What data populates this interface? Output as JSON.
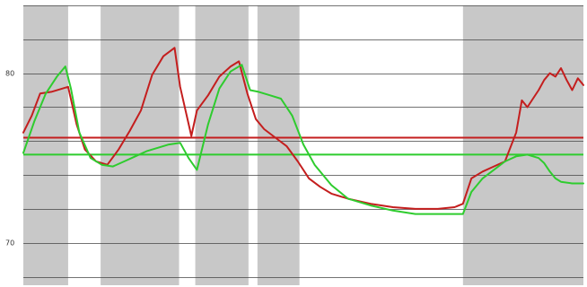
{
  "chart_data": {
    "type": "line",
    "title": "",
    "xlabel": "",
    "ylabel": "",
    "ylim": [
      67.5,
      84.0
    ],
    "xlim": [
      0,
      100
    ],
    "grid": true,
    "yticks": [
      70,
      80
    ],
    "ytick_labels": [
      "70",
      "80"
    ],
    "shaded_bands": [
      {
        "x0": 0,
        "x1": 8
      },
      {
        "x0": 13.8,
        "x1": 27.8
      },
      {
        "x0": 30.7,
        "x1": 40.2
      },
      {
        "x0": 41.8,
        "x1": 49.3
      },
      {
        "x0": 78.5,
        "x1": 100
      }
    ],
    "reference_lines": [
      {
        "series_color": "#c41e1e",
        "y": 76.2
      },
      {
        "series_color": "#2ecc2e",
        "y": 75.2
      }
    ],
    "series": [
      {
        "color": "#c41e1e",
        "x": [
          0,
          1.5,
          3,
          5,
          7,
          8,
          9.5,
          11,
          13,
          15,
          17,
          19,
          21,
          23,
          25,
          27,
          28,
          30,
          31,
          33,
          35,
          37,
          38.5,
          40,
          41.5,
          43,
          45,
          47,
          49,
          51,
          53,
          55,
          58,
          62,
          66,
          70,
          74,
          77,
          78.5,
          80,
          82,
          84,
          86,
          88,
          89,
          90,
          91,
          92,
          93,
          94,
          95,
          96,
          97,
          98,
          99,
          100
        ],
        "y": [
          76.5,
          77.5,
          78.8,
          78.9,
          79.1,
          79.2,
          77.0,
          75.5,
          74.8,
          74.6,
          75.5,
          76.6,
          77.8,
          79.9,
          81.0,
          81.5,
          79.2,
          76.3,
          77.8,
          78.7,
          79.8,
          80.4,
          80.7,
          78.8,
          77.3,
          76.7,
          76.2,
          75.7,
          74.8,
          73.8,
          73.3,
          72.9,
          72.6,
          72.3,
          72.1,
          72.0,
          72.0,
          72.1,
          72.3,
          73.8,
          74.2,
          74.5,
          74.8,
          76.5,
          78.4,
          78.0,
          78.5,
          79.0,
          79.6,
          80.0,
          79.8,
          80.3,
          79.6,
          79.0,
          79.7,
          79.3
        ]
      },
      {
        "color": "#2ecc2e",
        "x": [
          0,
          2,
          4,
          6,
          7.5,
          8.5,
          10,
          12,
          14,
          16,
          18,
          20,
          22,
          24,
          26,
          28,
          29.5,
          31,
          33,
          35,
          37,
          39,
          40.5,
          42,
          44,
          46,
          48,
          50,
          52,
          55,
          58,
          62,
          66,
          70,
          74,
          78.5,
          80,
          82,
          84,
          86,
          88,
          90,
          92,
          93,
          94,
          95,
          96,
          98,
          100
        ],
        "y": [
          75.3,
          77.2,
          78.8,
          79.8,
          80.4,
          79.1,
          76.5,
          75.0,
          74.6,
          74.5,
          74.8,
          75.1,
          75.4,
          75.6,
          75.8,
          75.9,
          75.0,
          74.3,
          77.0,
          79.1,
          80.1,
          80.5,
          79.0,
          78.9,
          78.7,
          78.5,
          77.5,
          75.8,
          74.6,
          73.4,
          72.6,
          72.2,
          71.9,
          71.7,
          71.7,
          71.7,
          73.0,
          73.8,
          74.3,
          74.8,
          75.1,
          75.2,
          75.0,
          74.7,
          74.2,
          73.8,
          73.6,
          73.5,
          73.5
        ]
      }
    ]
  }
}
